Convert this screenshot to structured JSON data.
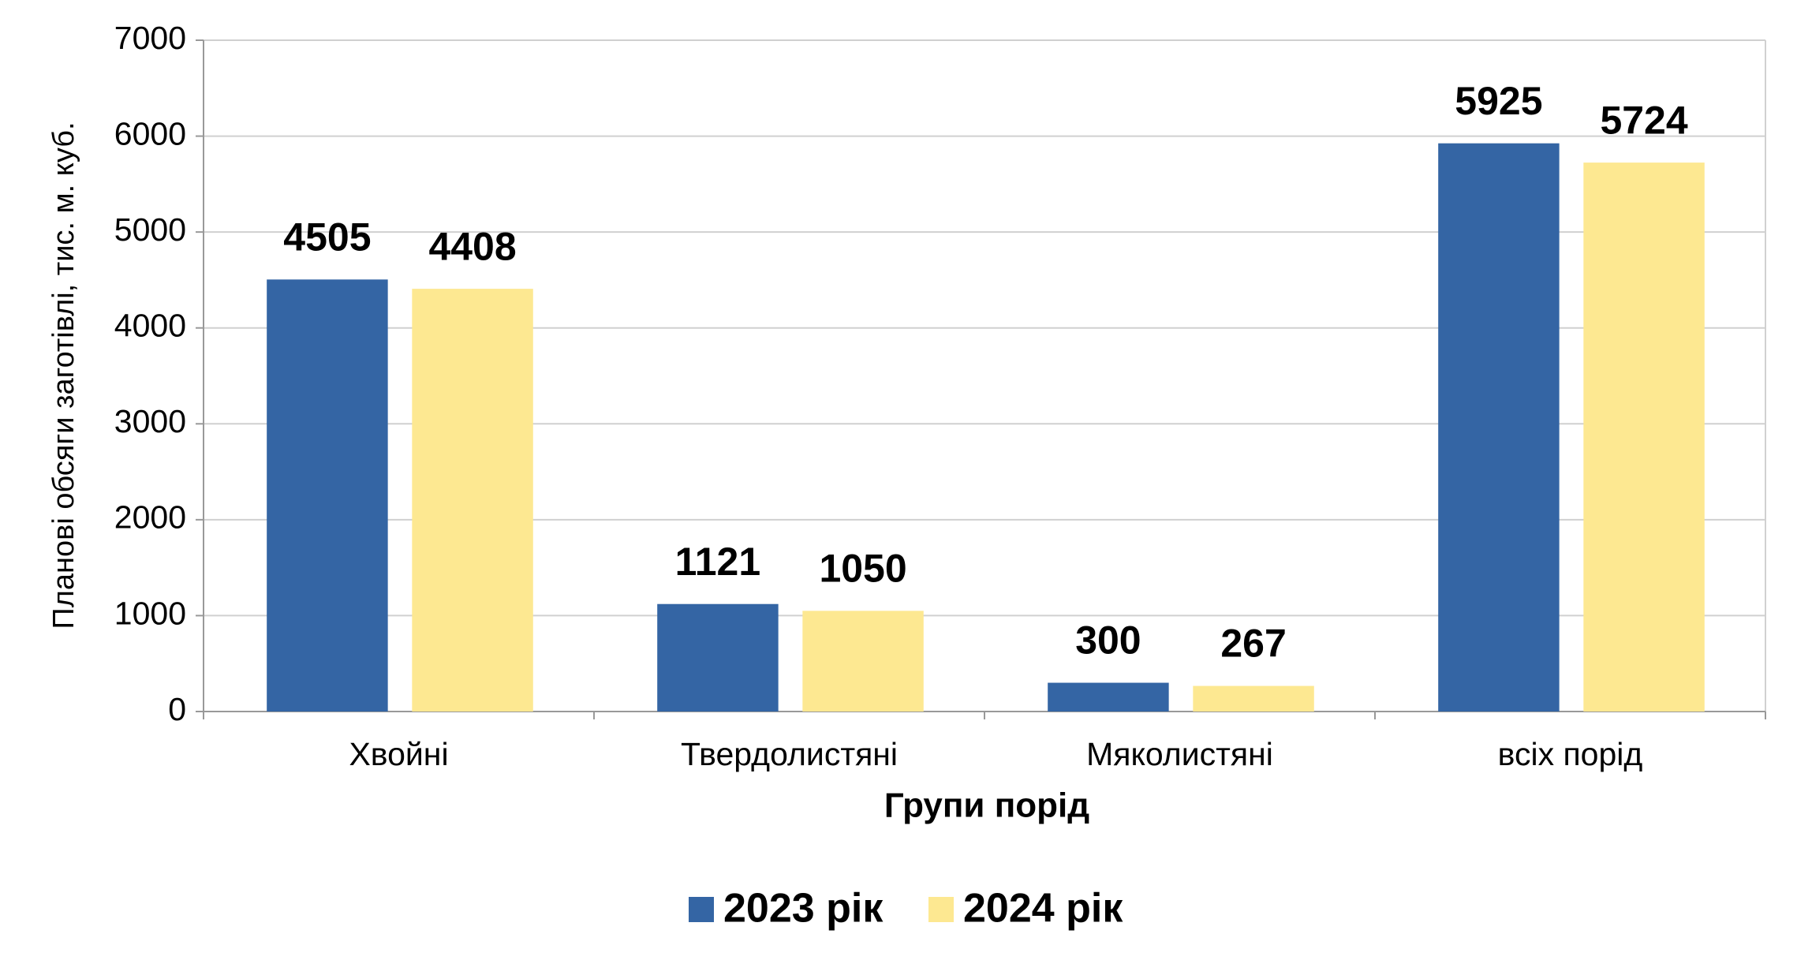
{
  "chart_data": {
    "type": "bar",
    "x_label": "Групи порід",
    "y_label": "Планові обсяги заготівлі, тис. м. куб.",
    "categories": [
      "Хвойні",
      "Твердолистяні",
      "Мяколистяні",
      "всіх порід"
    ],
    "series": [
      {
        "name": "2023 рік",
        "color": "#3465a4",
        "values": [
          4505,
          1121,
          300,
          5925
        ]
      },
      {
        "name": "2024 рік",
        "color": "#fde891",
        "values": [
          4408,
          1050,
          267,
          5724
        ]
      }
    ],
    "ylim": [
      0,
      7000
    ],
    "yticks": [
      0,
      1000,
      2000,
      3000,
      4000,
      5000,
      6000,
      7000
    ],
    "grid": true,
    "legend": "bottom"
  }
}
